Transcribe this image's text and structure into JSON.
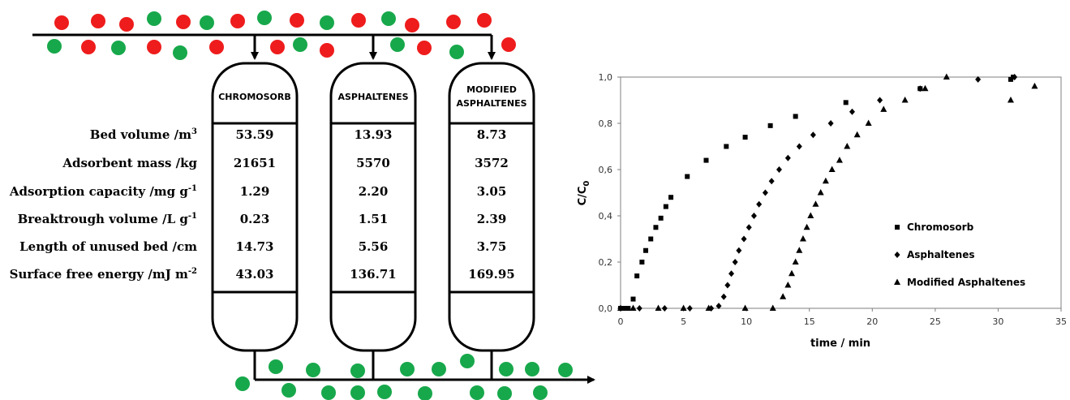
{
  "colors": {
    "red": "#ee1c1c",
    "green": "#17a84b",
    "line": "#000000"
  },
  "columns": [
    {
      "name_lines": [
        "CHROMOSORB"
      ]
    },
    {
      "name_lines": [
        "ASPHALTENES"
      ]
    },
    {
      "name_lines": [
        "MODIFIED",
        "ASPHALTENES"
      ]
    }
  ],
  "rows": [
    {
      "label": "Bed volume /m",
      "sup": "3",
      "values": [
        "53.59",
        "13.93",
        "8.73"
      ]
    },
    {
      "label": "Adsorbent mass /kg",
      "sup": "",
      "values": [
        "21651",
        "5570",
        "3572"
      ]
    },
    {
      "label": "Adsorption capacity /mg g",
      "sup": "-1",
      "values": [
        "1.29",
        "2.20",
        "3.05"
      ]
    },
    {
      "label": "Breaktrough volume /L g",
      "sup": "-1",
      "values": [
        "0.23",
        "1.51",
        "2.39"
      ]
    },
    {
      "label": "Length of unused bed /cm",
      "sup": "",
      "values": [
        "14.73",
        "5.56",
        "3.75"
      ]
    },
    {
      "label": "Surface free energy /mJ m",
      "sup": "-2",
      "values": [
        "43.03",
        "136.71",
        "169.95"
      ]
    }
  ],
  "chart_data": {
    "type": "scatter",
    "xlabel": "time / min",
    "ylabel": "C/C",
    "ylabel_sub": "0",
    "xlim": [
      0,
      35
    ],
    "ylim": [
      0,
      1
    ],
    "xticks": [
      "0",
      "5",
      "10",
      "15",
      "20",
      "25",
      "30",
      "35"
    ],
    "yticks": [
      "0,0",
      "0,2",
      "0,4",
      "0,6",
      "0,8",
      "1,0"
    ],
    "legend_position": "bottom-right",
    "grid": false,
    "series": [
      {
        "name": "Chromosorb",
        "marker": "square",
        "x": [
          0,
          0.3,
          0.6,
          1.0,
          1.3,
          1.7,
          2.0,
          2.4,
          2.8,
          3.2,
          3.6,
          4.0,
          5.3,
          6.8,
          8.4,
          9.9,
          11.9,
          13.9,
          17.9,
          23.8,
          31.0,
          31.2
        ],
        "y": [
          0,
          0,
          0,
          0.04,
          0.14,
          0.2,
          0.25,
          0.3,
          0.35,
          0.39,
          0.44,
          0.48,
          0.57,
          0.64,
          0.7,
          0.74,
          0.79,
          0.83,
          0.89,
          0.95,
          0.99,
          1.0
        ]
      },
      {
        "name": "Asphaltenes",
        "marker": "diamond",
        "x": [
          0,
          1.5,
          3.5,
          5.5,
          7.2,
          7.8,
          8.2,
          8.5,
          8.8,
          9.1,
          9.4,
          9.8,
          10.2,
          10.6,
          11.0,
          11.5,
          12.0,
          12.6,
          13.3,
          14.2,
          15.3,
          16.7,
          18.4,
          20.6,
          23.8,
          28.4,
          31.3
        ],
        "y": [
          0,
          0,
          0,
          0,
          0,
          0.01,
          0.05,
          0.1,
          0.15,
          0.2,
          0.25,
          0.3,
          0.35,
          0.4,
          0.45,
          0.5,
          0.55,
          0.6,
          0.65,
          0.7,
          0.75,
          0.8,
          0.85,
          0.9,
          0.95,
          0.99,
          1.0
        ]
      },
      {
        "name": "Modified Asphaltenes",
        "marker": "triangle",
        "x": [
          0,
          1.0,
          3.0,
          5.0,
          7.0,
          9.9,
          12.1,
          12.9,
          13.3,
          13.6,
          13.9,
          14.2,
          14.5,
          14.8,
          15.1,
          15.5,
          15.9,
          16.3,
          16.8,
          17.4,
          18.0,
          18.8,
          19.7,
          20.9,
          22.6,
          24.2,
          25.9,
          31.0,
          32.9
        ],
        "y": [
          0,
          0,
          0,
          0,
          0,
          0,
          0,
          0.05,
          0.1,
          0.15,
          0.2,
          0.25,
          0.3,
          0.35,
          0.4,
          0.45,
          0.5,
          0.55,
          0.6,
          0.64,
          0.7,
          0.75,
          0.8,
          0.86,
          0.9,
          0.95,
          1.0,
          0.9,
          0.96
        ]
      }
    ]
  }
}
